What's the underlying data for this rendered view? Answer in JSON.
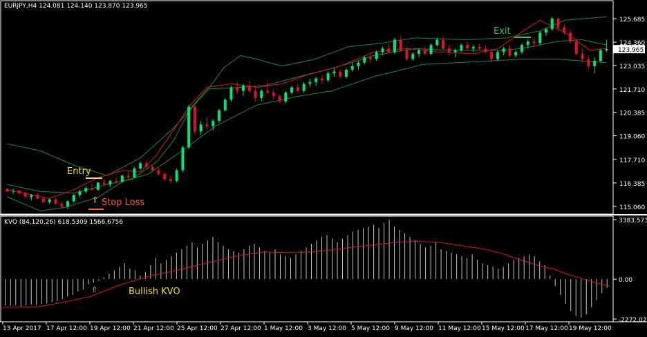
{
  "chart_data": [
    {
      "type": "candlestick",
      "title": "EURJPY,H4  124.081 124.140 123.870 123.965",
      "current_price_label": "123.965",
      "y_ticks": [
        "125.685",
        "124.360",
        "123.035",
        "121.710",
        "120.385",
        "119.060",
        "117.710",
        "116.385",
        "115.060"
      ],
      "ylim": [
        114.7,
        126.2
      ],
      "colors": {
        "bull": "#00e676",
        "bear": "#e0102a",
        "bands": "#1f8a3a",
        "middle": "#e0102a",
        "text": "#ffffff"
      },
      "annotations": {
        "entry": "Entry",
        "exit": "Exit",
        "stop_loss": "Stop Loss"
      },
      "bands": {
        "upper": [
          [
            0,
            118.6
          ],
          [
            8,
            118.2
          ],
          [
            16,
            117.4
          ],
          [
            24,
            116.8
          ],
          [
            32,
            117.8
          ],
          [
            40,
            119.5
          ],
          [
            48,
            121.6
          ],
          [
            52,
            122.9
          ],
          [
            56,
            123.6
          ],
          [
            60,
            123.4
          ],
          [
            66,
            123.0
          ],
          [
            74,
            123.4
          ],
          [
            82,
            124.1
          ],
          [
            90,
            124.3
          ],
          [
            98,
            124.6
          ],
          [
            110,
            124.5
          ],
          [
            120,
            124.6
          ],
          [
            128,
            125.0
          ],
          [
            134,
            125.6
          ],
          [
            144,
            125.8
          ]
        ],
        "middle": [
          [
            0,
            116.3
          ],
          [
            8,
            115.9
          ],
          [
            16,
            115.8
          ],
          [
            24,
            116.3
          ],
          [
            30,
            116.6
          ],
          [
            36,
            117.6
          ],
          [
            40,
            118.8
          ],
          [
            44,
            120.6
          ],
          [
            48,
            121.7
          ],
          [
            56,
            121.8
          ],
          [
            62,
            121.9
          ],
          [
            70,
            122.4
          ],
          [
            80,
            123.0
          ],
          [
            88,
            123.6
          ],
          [
            98,
            124.0
          ],
          [
            106,
            123.9
          ],
          [
            112,
            123.9
          ],
          [
            120,
            123.9
          ],
          [
            126,
            124.1
          ],
          [
            132,
            124.4
          ],
          [
            138,
            124.5
          ],
          [
            144,
            124.2
          ]
        ],
        "lower": [
          [
            0,
            115.6
          ],
          [
            8,
            114.8
          ],
          [
            14,
            115.0
          ],
          [
            22,
            115.6
          ],
          [
            28,
            116.5
          ],
          [
            34,
            116.9
          ],
          [
            42,
            118.2
          ],
          [
            50,
            119.6
          ],
          [
            60,
            120.8
          ],
          [
            70,
            121.3
          ],
          [
            78,
            121.6
          ],
          [
            88,
            122.4
          ],
          [
            100,
            123.1
          ],
          [
            108,
            123.2
          ],
          [
            116,
            123.3
          ],
          [
            124,
            123.4
          ],
          [
            132,
            123.4
          ],
          [
            144,
            123.2
          ]
        ],
        "fast": [
          [
            0,
            116.0
          ],
          [
            6,
            115.7
          ],
          [
            10,
            115.5
          ],
          [
            16,
            116.0
          ],
          [
            22,
            116.7
          ],
          [
            28,
            117.1
          ],
          [
            32,
            117.0
          ],
          [
            36,
            118.0
          ],
          [
            40,
            119.4
          ],
          [
            44,
            120.8
          ],
          [
            48,
            121.8
          ],
          [
            54,
            122.0
          ],
          [
            60,
            121.8
          ],
          [
            66,
            122.0
          ],
          [
            72,
            122.5
          ],
          [
            80,
            123.0
          ],
          [
            88,
            123.8
          ],
          [
            96,
            124.0
          ],
          [
            104,
            123.8
          ],
          [
            112,
            123.7
          ],
          [
            118,
            124.0
          ],
          [
            124,
            125.0
          ],
          [
            128,
            125.6
          ],
          [
            134,
            124.9
          ],
          [
            140,
            123.9
          ],
          [
            144,
            124.0
          ]
        ]
      },
      "candles": [
        [
          116.05,
          116.1,
          115.85,
          115.9
        ],
        [
          115.9,
          116.05,
          115.75,
          115.95
        ],
        [
          115.95,
          116.0,
          115.7,
          115.8
        ],
        [
          115.8,
          115.9,
          115.55,
          115.6
        ],
        [
          115.6,
          115.75,
          115.4,
          115.7
        ],
        [
          115.7,
          115.8,
          115.45,
          115.5
        ],
        [
          115.5,
          115.6,
          115.25,
          115.3
        ],
        [
          115.3,
          115.5,
          115.2,
          115.45
        ],
        [
          115.45,
          115.55,
          115.15,
          115.2
        ],
        [
          115.2,
          115.35,
          114.95,
          115.05
        ],
        [
          115.05,
          115.4,
          114.9,
          115.35
        ],
        [
          115.35,
          115.75,
          115.25,
          115.7
        ],
        [
          115.7,
          116.0,
          115.6,
          115.9
        ],
        [
          115.9,
          116.2,
          115.8,
          116.1
        ],
        [
          116.1,
          116.3,
          115.95,
          116.0
        ],
        [
          116.0,
          116.45,
          115.95,
          116.4
        ],
        [
          116.4,
          116.6,
          116.2,
          116.3
        ],
        [
          116.3,
          116.55,
          116.15,
          116.5
        ],
        [
          116.5,
          116.7,
          116.35,
          116.45
        ],
        [
          116.45,
          116.85,
          116.4,
          116.8
        ],
        [
          116.8,
          117.0,
          116.6,
          116.7
        ],
        [
          116.7,
          117.3,
          116.65,
          117.2
        ],
        [
          117.2,
          117.6,
          117.1,
          117.5
        ],
        [
          117.5,
          117.65,
          117.2,
          117.3
        ],
        [
          117.3,
          117.4,
          117.0,
          117.1
        ],
        [
          117.1,
          117.2,
          116.8,
          116.9
        ],
        [
          116.9,
          117.0,
          116.5,
          116.6
        ],
        [
          116.6,
          116.8,
          116.35,
          116.5
        ],
        [
          116.5,
          117.2,
          116.4,
          117.1
        ],
        [
          117.1,
          118.5,
          117.0,
          118.4
        ],
        [
          118.4,
          120.8,
          118.3,
          120.7
        ],
        [
          120.7,
          120.85,
          119.1,
          119.3
        ],
        [
          119.3,
          119.9,
          119.1,
          119.7
        ],
        [
          119.7,
          120.1,
          119.4,
          119.6
        ],
        [
          119.6,
          120.0,
          119.35,
          119.9
        ],
        [
          119.9,
          120.6,
          119.8,
          120.5
        ],
        [
          120.5,
          121.2,
          120.4,
          121.1
        ],
        [
          121.1,
          121.9,
          121.0,
          121.8
        ],
        [
          121.8,
          122.1,
          121.4,
          121.6
        ],
        [
          121.6,
          122.0,
          121.3,
          121.9
        ],
        [
          121.9,
          122.2,
          121.5,
          121.6
        ],
        [
          121.6,
          121.8,
          121.0,
          121.2
        ],
        [
          121.2,
          121.7,
          121.0,
          121.6
        ],
        [
          121.6,
          122.1,
          121.4,
          121.5
        ],
        [
          121.5,
          121.7,
          121.1,
          121.3
        ],
        [
          121.3,
          121.4,
          120.9,
          121.0
        ],
        [
          121.0,
          121.6,
          120.9,
          121.5
        ],
        [
          121.5,
          121.9,
          121.4,
          121.8
        ],
        [
          121.8,
          122.0,
          121.5,
          121.6
        ],
        [
          121.6,
          122.1,
          121.5,
          122.0
        ],
        [
          122.0,
          122.3,
          121.8,
          122.1
        ],
        [
          122.1,
          122.4,
          121.9,
          122.3
        ],
        [
          122.3,
          122.5,
          122.0,
          122.2
        ],
        [
          122.2,
          122.7,
          122.1,
          122.6
        ],
        [
          122.6,
          122.9,
          122.4,
          122.7
        ],
        [
          122.7,
          122.8,
          122.3,
          122.4
        ],
        [
          122.4,
          122.9,
          122.3,
          122.8
        ],
        [
          122.8,
          123.2,
          122.7,
          123.0
        ],
        [
          123.0,
          123.3,
          122.8,
          123.2
        ],
        [
          123.2,
          123.6,
          123.1,
          123.5
        ],
        [
          123.5,
          123.7,
          123.2,
          123.4
        ],
        [
          123.4,
          123.9,
          123.3,
          123.8
        ],
        [
          123.8,
          124.1,
          123.6,
          124.0
        ],
        [
          124.0,
          124.3,
          123.7,
          123.8
        ],
        [
          123.8,
          124.6,
          123.7,
          124.5
        ],
        [
          124.5,
          124.7,
          123.8,
          123.9
        ],
        [
          123.9,
          124.1,
          123.3,
          123.4
        ],
        [
          123.4,
          123.8,
          123.3,
          123.7
        ],
        [
          123.7,
          124.0,
          123.5,
          123.9
        ],
        [
          123.9,
          124.1,
          123.6,
          123.7
        ],
        [
          123.7,
          124.3,
          123.6,
          124.2
        ],
        [
          124.2,
          124.6,
          124.1,
          124.5
        ],
        [
          124.5,
          124.7,
          123.9,
          124.0
        ],
        [
          124.0,
          124.2,
          123.6,
          123.8
        ],
        [
          123.8,
          124.0,
          123.5,
          123.9
        ],
        [
          123.9,
          124.3,
          123.8,
          124.2
        ],
        [
          124.2,
          124.4,
          123.9,
          124.0
        ],
        [
          124.0,
          124.2,
          123.8,
          124.1
        ],
        [
          124.1,
          124.3,
          123.9,
          124.0
        ],
        [
          124.0,
          124.2,
          123.7,
          123.8
        ],
        [
          123.8,
          124.0,
          123.2,
          123.4
        ],
        [
          123.4,
          123.9,
          123.3,
          123.8
        ],
        [
          123.8,
          124.1,
          123.6,
          124.0
        ],
        [
          124.0,
          124.2,
          123.5,
          123.6
        ],
        [
          123.6,
          123.9,
          123.5,
          123.8
        ],
        [
          123.8,
          124.3,
          123.7,
          124.2
        ],
        [
          124.2,
          124.5,
          124.0,
          124.4
        ],
        [
          124.4,
          124.6,
          124.1,
          124.3
        ],
        [
          124.3,
          125.0,
          124.2,
          124.9
        ],
        [
          124.9,
          125.2,
          124.7,
          125.1
        ],
        [
          125.1,
          125.8,
          125.0,
          125.7
        ],
        [
          125.7,
          125.75,
          125.0,
          125.2
        ],
        [
          125.2,
          125.4,
          124.8,
          124.9
        ],
        [
          124.9,
          125.1,
          124.3,
          124.4
        ],
        [
          124.4,
          124.6,
          123.6,
          123.7
        ],
        [
          123.7,
          124.0,
          123.2,
          123.4
        ],
        [
          123.4,
          123.6,
          122.8,
          123.0
        ],
        [
          123.0,
          123.5,
          122.6,
          123.3
        ],
        [
          123.3,
          124.0,
          123.2,
          123.9
        ],
        [
          123.9,
          124.5,
          123.8,
          123.97
        ]
      ]
    },
    {
      "type": "histogram+line",
      "title": "KVO (84,120,26)  618.5309 1566.6756",
      "y_ticks": [
        "3383.5731",
        "0.00",
        "-2272.0204"
      ],
      "ylim": [
        -2272.0204,
        3383.5731
      ],
      "annotation": "Bullish KVO",
      "colors": {
        "hist": "#c8c8c8",
        "signal": "#e0102a"
      },
      "histogram": [
        -1500,
        -1520,
        -1480,
        -1550,
        -1500,
        -1450,
        -1480,
        -1420,
        -1380,
        -1300,
        -1250,
        -1150,
        -1000,
        -900,
        -700,
        -600,
        -300,
        -200,
        -100,
        100,
        300,
        500,
        700,
        900,
        600,
        500,
        200,
        400,
        800,
        1200,
        900,
        1100,
        1300,
        1500,
        1700,
        1900,
        2100,
        1800,
        2000,
        2200,
        2400,
        2100,
        1900,
        1700,
        1600,
        1500,
        1700,
        1900,
        2000,
        1800,
        1600,
        1500,
        1700,
        1400,
        1300,
        1200,
        1400,
        1600,
        1800,
        2000,
        2200,
        2400,
        2500,
        2300,
        2100,
        2300,
        2500,
        2700,
        2800,
        2900,
        3000,
        3100,
        2900,
        3200,
        3383,
        3000,
        2800,
        2600,
        2400,
        2200,
        2000,
        1800,
        1900,
        2100,
        1700,
        1600,
        1500,
        1400,
        1300,
        1200,
        1400,
        1100,
        900,
        800,
        700,
        600,
        700,
        900,
        1100,
        1200,
        1300,
        1400,
        1300,
        1000,
        800,
        200,
        -400,
        -900,
        -1400,
        -1800,
        -2100,
        -2200,
        -2000,
        -1600,
        -1200,
        -800,
        -500
      ],
      "signal": [
        [
          0,
          -1600
        ],
        [
          12,
          -1580
        ],
        [
          20,
          -1350
        ],
        [
          30,
          -1000
        ],
        [
          40,
          -350
        ],
        [
          50,
          150
        ],
        [
          60,
          500
        ],
        [
          70,
          900
        ],
        [
          80,
          1300
        ],
        [
          90,
          1550
        ],
        [
          100,
          1500
        ],
        [
          110,
          1600
        ],
        [
          120,
          1800
        ],
        [
          128,
          1950
        ],
        [
          136,
          2100
        ],
        [
          142,
          2150
        ],
        [
          150,
          2100
        ],
        [
          158,
          1900
        ],
        [
          166,
          1700
        ],
        [
          172,
          1450
        ],
        [
          178,
          1100
        ],
        [
          184,
          800
        ],
        [
          190,
          550
        ],
        [
          194,
          300
        ],
        [
          200,
          0
        ],
        [
          204,
          -200
        ],
        [
          209,
          -400
        ]
      ]
    }
  ],
  "time_axis": [
    "13 Apr 2017",
    "17 Apr 12:00",
    "19 Apr 12:00",
    "21 Apr 12:00",
    "25 Apr 12:00",
    "27 Apr 12:00",
    "1 May 12:00",
    "3 May 12:00",
    "5 May 12:00",
    "9 May 12:00",
    "11 May 12:00",
    "15 May 12:00",
    "17 May 12:00",
    "19 May 12:00"
  ]
}
